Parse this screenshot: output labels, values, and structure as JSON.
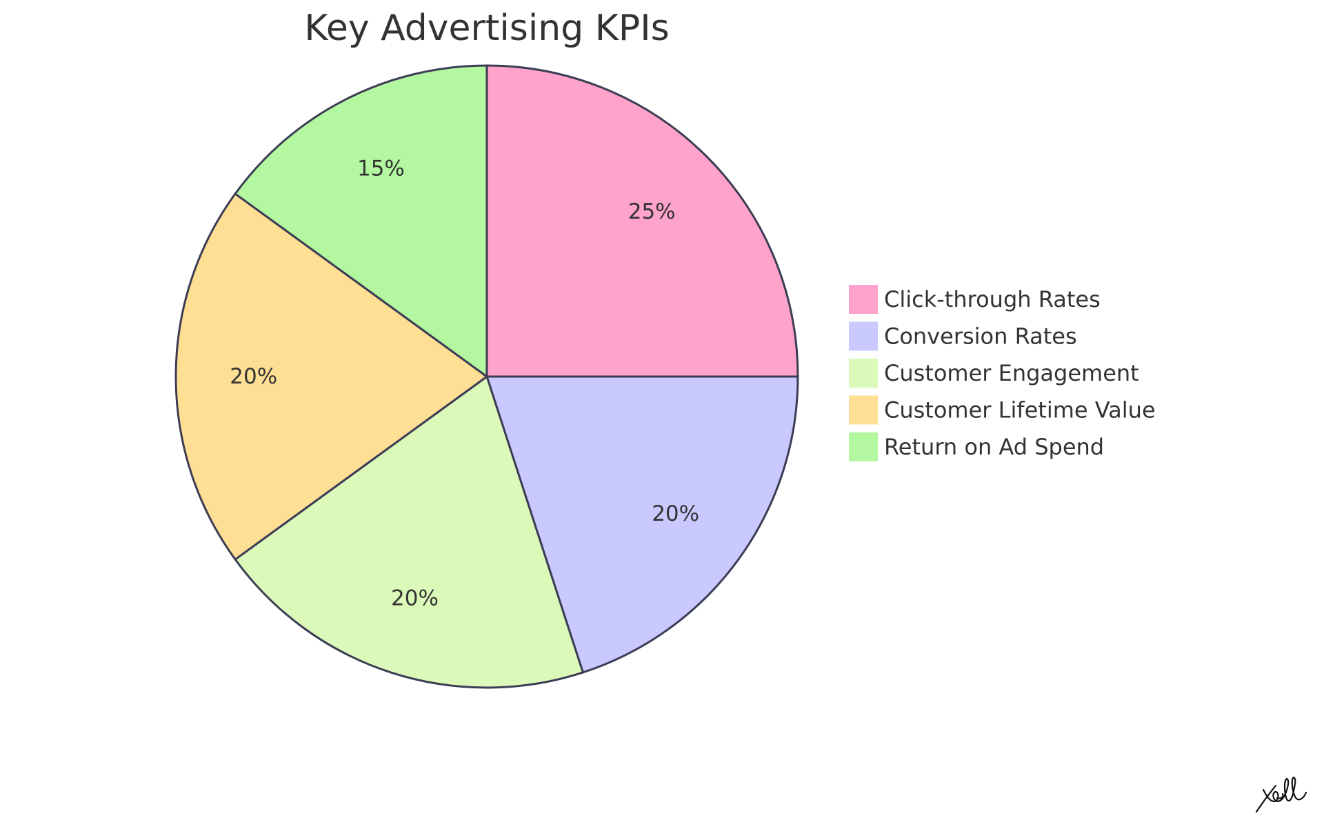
{
  "chart_data": {
    "type": "pie",
    "title": "Key Advertising KPIs",
    "categories": [
      "Click-through Rates",
      "Conversion Rates",
      "Customer Engagement",
      "Customer Lifetime Value",
      "Return on Ad Spend"
    ],
    "values": [
      25,
      20,
      20,
      20,
      15
    ],
    "labels": [
      "25%",
      "20%",
      "20%",
      "20%",
      "15%"
    ],
    "colors": [
      "#ffa3cc",
      "#c9c9ff",
      "#dbf9b8",
      "#ffdf94",
      "#b3f8a0"
    ],
    "legend_position": "right",
    "start_angle": "12 o'clock, clockwise"
  },
  "watermark": {
    "kind": "handwritten-signature",
    "text": "Yall"
  }
}
